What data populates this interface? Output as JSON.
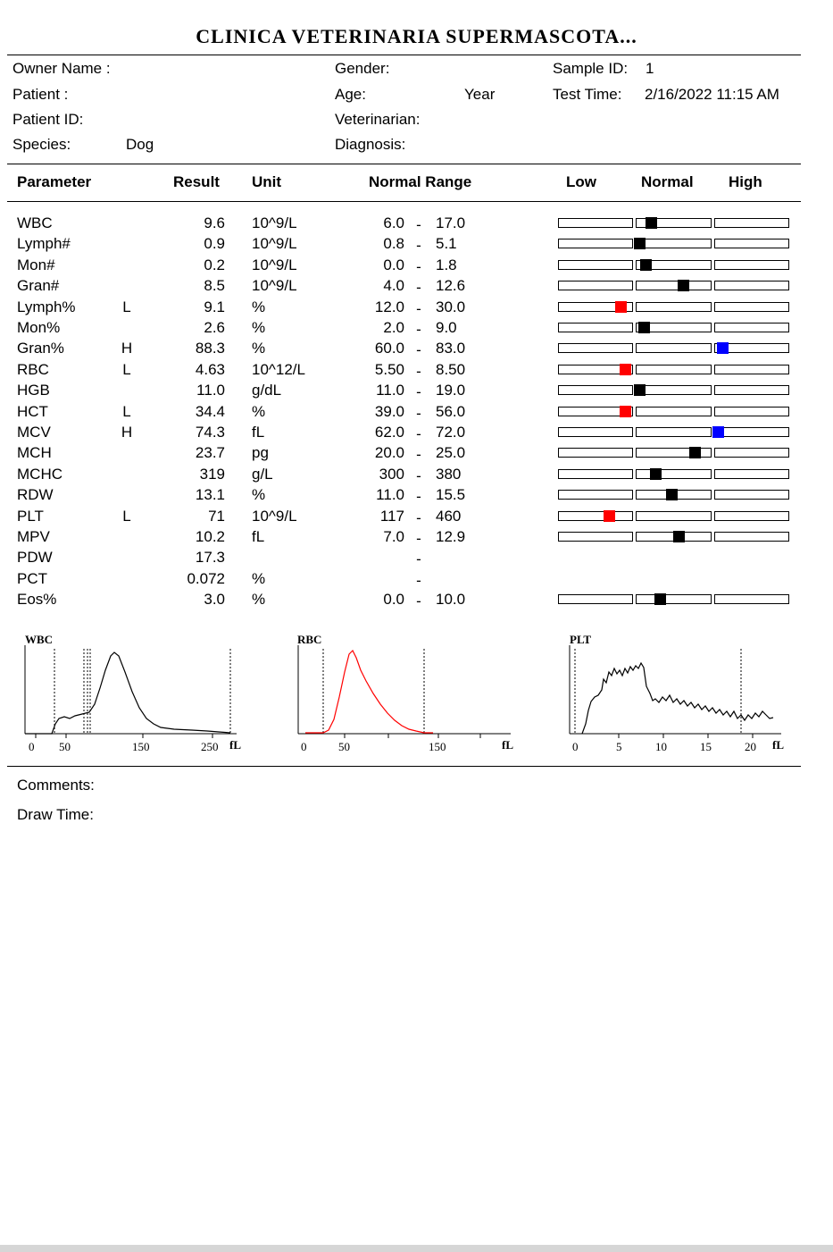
{
  "title": "CLINICA VETERINARIA SUPERMASCOTA...",
  "info": {
    "owner_label": "Owner Name :",
    "patient_label": "Patient :",
    "patient_id_label": "Patient ID:",
    "species_label": "Species:",
    "species_value": "Dog",
    "gender_label": "Gender:",
    "age_label": "Age:",
    "age_unit": "Year",
    "vet_label": "Veterinarian:",
    "diagnosis_label": "Diagnosis:",
    "sample_label": "Sample ID:",
    "sample_value": "1",
    "time_label": "Test Time:",
    "time_value": "2/16/2022 11:15 AM"
  },
  "headers": {
    "parameter": "Parameter",
    "result": "Result",
    "unit": "Unit",
    "range": "Normal Range",
    "low": "Low",
    "normal": "Normal",
    "high": "High"
  },
  "rows": [
    {
      "name": "WBC",
      "flag": "",
      "result": "9.6",
      "unit": "10^9/L",
      "low": "6.0",
      "dash": "-",
      "high": "17.0",
      "marker": {
        "pos": 0.4,
        "color": "#000000"
      }
    },
    {
      "name": "Lymph#",
      "flag": "",
      "result": "0.9",
      "unit": "10^9/L",
      "low": "0.8",
      "dash": "-",
      "high": "5.1",
      "marker": {
        "pos": 0.35,
        "color": "#000000"
      }
    },
    {
      "name": "Mon#",
      "flag": "",
      "result": "0.2",
      "unit": "10^9/L",
      "low": "0.0",
      "dash": "-",
      "high": "1.8",
      "marker": {
        "pos": 0.38,
        "color": "#000000"
      }
    },
    {
      "name": "Gran#",
      "flag": "",
      "result": "8.5",
      "unit": "10^9/L",
      "low": "4.0",
      "dash": "-",
      "high": "12.6",
      "marker": {
        "pos": 0.54,
        "color": "#000000"
      }
    },
    {
      "name": "Lymph%",
      "flag": "L",
      "result": "9.1",
      "unit": "%",
      "low": "12.0",
      "dash": "-",
      "high": "30.0",
      "marker": {
        "pos": 0.27,
        "color": "#ff0000"
      }
    },
    {
      "name": "Mon%",
      "flag": "",
      "result": "2.6",
      "unit": "%",
      "low": "2.0",
      "dash": "-",
      "high": "9.0",
      "marker": {
        "pos": 0.37,
        "color": "#000000"
      }
    },
    {
      "name": "Gran%",
      "flag": "H",
      "result": "88.3",
      "unit": "%",
      "low": "60.0",
      "dash": "-",
      "high": "83.0",
      "marker": {
        "pos": 0.71,
        "color": "#0000ff"
      }
    },
    {
      "name": "RBC",
      "flag": "L",
      "result": "4.63",
      "unit": "10^12/L",
      "low": "5.50",
      "dash": "-",
      "high": "8.50",
      "marker": {
        "pos": 0.29,
        "color": "#ff0000"
      }
    },
    {
      "name": "HGB",
      "flag": "",
      "result": "11.0",
      "unit": "g/dL",
      "low": "11.0",
      "dash": "-",
      "high": "19.0",
      "marker": {
        "pos": 0.35,
        "color": "#000000"
      }
    },
    {
      "name": "HCT",
      "flag": "L",
      "result": "34.4",
      "unit": "%",
      "low": "39.0",
      "dash": "-",
      "high": "56.0",
      "marker": {
        "pos": 0.29,
        "color": "#ff0000"
      }
    },
    {
      "name": "MCV",
      "flag": "H",
      "result": "74.3",
      "unit": "fL",
      "low": "62.0",
      "dash": "-",
      "high": "72.0",
      "marker": {
        "pos": 0.69,
        "color": "#0000ff"
      }
    },
    {
      "name": "MCH",
      "flag": "",
      "result": "23.7",
      "unit": "pg",
      "low": "20.0",
      "dash": "-",
      "high": "25.0",
      "marker": {
        "pos": 0.59,
        "color": "#000000"
      }
    },
    {
      "name": "MCHC",
      "flag": "",
      "result": "319",
      "unit": "g/L",
      "low": "300",
      "dash": "-",
      "high": "380",
      "marker": {
        "pos": 0.42,
        "color": "#000000"
      }
    },
    {
      "name": "RDW",
      "flag": "",
      "result": "13.1",
      "unit": "%",
      "low": "11.0",
      "dash": "-",
      "high": "15.5",
      "marker": {
        "pos": 0.49,
        "color": "#000000"
      }
    },
    {
      "name": "PLT",
      "flag": "L",
      "result": "71",
      "unit": "10^9/L",
      "low": "117",
      "dash": "-",
      "high": "460",
      "marker": {
        "pos": 0.22,
        "color": "#ff0000"
      }
    },
    {
      "name": "MPV",
      "flag": "",
      "result": "10.2",
      "unit": "fL",
      "low": "7.0",
      "dash": "-",
      "high": "12.9",
      "marker": {
        "pos": 0.52,
        "color": "#000000"
      }
    },
    {
      "name": "PDW",
      "flag": "",
      "result": "17.3",
      "unit": "",
      "low": "",
      "dash": "-",
      "high": "",
      "marker": null
    },
    {
      "name": "PCT",
      "flag": "",
      "result": "0.072",
      "unit": "%",
      "low": "",
      "dash": "-",
      "high": "",
      "marker": null
    },
    {
      "name": "Eos%",
      "flag": "",
      "result": "3.0",
      "unit": "%",
      "low": "0.0",
      "dash": "-",
      "high": "10.0",
      "marker": {
        "pos": 0.44,
        "color": "#000000"
      }
    }
  ],
  "histograms": {
    "wbc": {
      "title": "WBC",
      "ticks": [
        "0",
        "50",
        "150",
        "250"
      ],
      "unit": "fL",
      "color": "#000000"
    },
    "rbc": {
      "title": "RBC",
      "ticks": [
        "0",
        "50",
        "150"
      ],
      "unit": "fL",
      "color": "#ff0000"
    },
    "plt": {
      "title": "PLT",
      "ticks": [
        "0",
        "5",
        "10",
        "15",
        "20"
      ],
      "unit": "fL",
      "color": "#000000"
    }
  },
  "footer": {
    "comments_label": "Comments:",
    "draw_time_label": "Draw Time:"
  }
}
